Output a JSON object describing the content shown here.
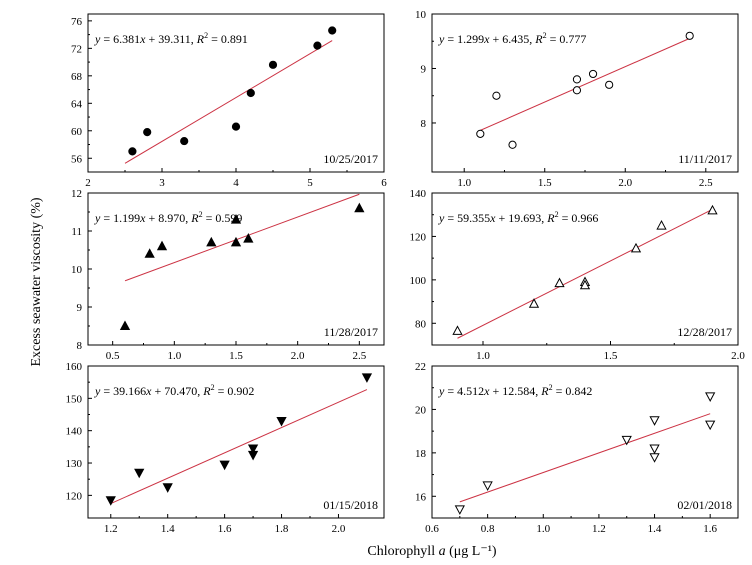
{
  "figure": {
    "ylabel": "Excess seawater viscosity (%)",
    "xlabel_prefix": "Chlorophyll ",
    "xlabel_italic": "a",
    "xlabel_suffix": " (μg L⁻¹)"
  },
  "colors": {
    "axis": "#000000",
    "fit_line": "#cc3344",
    "marker": "#000000"
  },
  "chart_data": [
    {
      "type": "scatter",
      "date": "10/25/2017",
      "equation": "y = 6.381x + 39.311, R² = 0.891",
      "eq_parts": {
        "y": "y",
        "mid": " = 6.381",
        "x": "x",
        "rest": " + 39.311, ",
        "r": "R",
        "two": "2",
        "val": " = 0.891"
      },
      "marker": "circle-filled",
      "xlim": [
        2,
        6
      ],
      "ylim": [
        54,
        77
      ],
      "xticks": [
        2,
        3,
        4,
        5,
        6
      ],
      "xtick_labels": [
        "2",
        "3",
        "4",
        "5",
        "6"
      ],
      "yticks": [
        56,
        60,
        64,
        68,
        72,
        76
      ],
      "ytick_labels": [
        "56",
        "60",
        "64",
        "68",
        "72",
        "76"
      ],
      "x": [
        2.6,
        2.8,
        3.3,
        4.0,
        4.2,
        4.5,
        5.1,
        5.3
      ],
      "y": [
        57.0,
        59.8,
        58.5,
        60.6,
        65.5,
        69.6,
        72.4,
        74.6
      ],
      "fit": {
        "slope": 6.381,
        "intercept": 39.311,
        "x_range": [
          2.5,
          5.3
        ]
      }
    },
    {
      "type": "scatter",
      "date": "11/11/2017",
      "equation": "y = 1.299x + 6.435, R² = 0.777",
      "eq_parts": {
        "y": "y",
        "mid": " = 1.299",
        "x": "x",
        "rest": " + 6.435, ",
        "r": "R",
        "two": "2",
        "val": " = 0.777"
      },
      "marker": "circle-open",
      "xlim": [
        0.8,
        2.7
      ],
      "ylim": [
        7.1,
        10.0
      ],
      "xticks": [
        1.0,
        1.5,
        2.0,
        2.5
      ],
      "xtick_labels": [
        "1.0",
        "1.5",
        "2.0",
        "2.5"
      ],
      "yticks": [
        8,
        9,
        10
      ],
      "ytick_labels": [
        "8",
        "9",
        "10"
      ],
      "x": [
        1.1,
        1.2,
        1.3,
        1.7,
        1.7,
        1.8,
        1.9,
        2.4
      ],
      "y": [
        7.8,
        8.5,
        7.6,
        8.8,
        8.6,
        8.9,
        8.7,
        9.6
      ],
      "fit": {
        "slope": 1.299,
        "intercept": 6.435,
        "x_range": [
          1.1,
          2.4
        ]
      }
    },
    {
      "type": "scatter",
      "date": "11/28/2017",
      "equation": "y = 1.199x + 8.970, R² = 0.599",
      "eq_parts": {
        "y": "y",
        "mid": " = 1.199",
        "x": "x",
        "rest": " + 8.970, ",
        "r": "R",
        "two": "2",
        "val": " = 0.599"
      },
      "marker": "triangle-up-filled",
      "xlim": [
        0.3,
        2.7
      ],
      "ylim": [
        8,
        12
      ],
      "xticks": [
        0.5,
        1.0,
        1.5,
        2.0,
        2.5
      ],
      "xtick_labels": [
        "0.5",
        "1.0",
        "1.5",
        "2.0",
        "2.5"
      ],
      "yticks": [
        8,
        9,
        10,
        11,
        12
      ],
      "ytick_labels": [
        "8",
        "9",
        "10",
        "11",
        "12"
      ],
      "x": [
        0.6,
        0.8,
        0.9,
        1.3,
        1.5,
        1.5,
        1.6,
        2.5
      ],
      "y": [
        8.5,
        10.4,
        10.6,
        10.7,
        10.7,
        11.3,
        10.8,
        11.6
      ],
      "fit": {
        "slope": 1.199,
        "intercept": 8.97,
        "x_range": [
          0.6,
          2.5
        ]
      }
    },
    {
      "type": "scatter",
      "date": "12/28/2017",
      "equation": "y = 59.355x + 19.693, R² = 0.966",
      "eq_parts": {
        "y": "y",
        "mid": " = 59.355",
        "x": "x",
        "rest": " + 19.693, ",
        "r": "R",
        "two": "2",
        "val": " = 0.966"
      },
      "marker": "triangle-up-open",
      "xlim": [
        0.8,
        2.0
      ],
      "ylim": [
        70,
        140
      ],
      "xticks": [
        1.0,
        1.5,
        2.0
      ],
      "xtick_labels": [
        "1.0",
        "1.5",
        "2.0"
      ],
      "yticks": [
        80,
        100,
        120,
        140
      ],
      "ytick_labels": [
        "80",
        "100",
        "120",
        "140"
      ],
      "x": [
        0.9,
        1.2,
        1.3,
        1.4,
        1.4,
        1.6,
        1.7,
        1.9
      ],
      "y": [
        76.5,
        89.0,
        98.5,
        99.0,
        97.5,
        114.5,
        125.0,
        132.0
      ],
      "fit": {
        "slope": 59.355,
        "intercept": 19.693,
        "x_range": [
          0.9,
          1.9
        ]
      }
    },
    {
      "type": "scatter",
      "date": "01/15/2018",
      "equation": "y = 39.166x + 70.470, R² = 0.902",
      "eq_parts": {
        "y": "y",
        "mid": " = 39.166",
        "x": "x",
        "rest": " + 70.470, ",
        "r": "R",
        "two": "2",
        "val": " = 0.902"
      },
      "marker": "triangle-down-filled",
      "xlim": [
        1.12,
        2.16
      ],
      "ylim": [
        113,
        160
      ],
      "xticks": [
        1.2,
        1.4,
        1.6,
        1.8,
        2.0
      ],
      "xtick_labels": [
        "1.2",
        "1.4",
        "1.6",
        "1.8",
        "2.0"
      ],
      "yticks": [
        120,
        130,
        140,
        150,
        160
      ],
      "ytick_labels": [
        "120",
        "130",
        "140",
        "150",
        "160"
      ],
      "x": [
        1.2,
        1.3,
        1.4,
        1.6,
        1.7,
        1.7,
        1.8,
        2.1
      ],
      "y": [
        118.5,
        127.0,
        122.5,
        129.5,
        132.5,
        134.5,
        143.0,
        156.5
      ],
      "fit": {
        "slope": 39.166,
        "intercept": 70.47,
        "x_range": [
          1.2,
          2.1
        ]
      }
    },
    {
      "type": "scatter",
      "date": "02/01/2018",
      "equation": "y = 4.512x + 12.584, R² = 0.842",
      "eq_parts": {
        "y": "y",
        "mid": " = 4.512",
        "x": "x",
        "rest": " + 12.584, ",
        "r": "R",
        "two": "2",
        "val": " = 0.842"
      },
      "marker": "triangle-down-open",
      "xlim": [
        0.6,
        1.7
      ],
      "ylim": [
        15,
        22
      ],
      "xticks": [
        0.6,
        0.8,
        1.0,
        1.2,
        1.4,
        1.6
      ],
      "xtick_labels": [
        "0.6",
        "0.8",
        "1.0",
        "1.2",
        "1.4",
        "1.6"
      ],
      "yticks": [
        16,
        18,
        20,
        22
      ],
      "ytick_labels": [
        "16",
        "18",
        "20",
        "22"
      ],
      "x": [
        0.7,
        0.8,
        1.3,
        1.4,
        1.4,
        1.4,
        1.6,
        1.6
      ],
      "y": [
        15.4,
        16.5,
        18.6,
        19.5,
        18.2,
        17.8,
        20.6,
        19.3
      ],
      "fit": {
        "slope": 4.512,
        "intercept": 12.584,
        "x_range": [
          0.7,
          1.6
        ]
      }
    }
  ]
}
